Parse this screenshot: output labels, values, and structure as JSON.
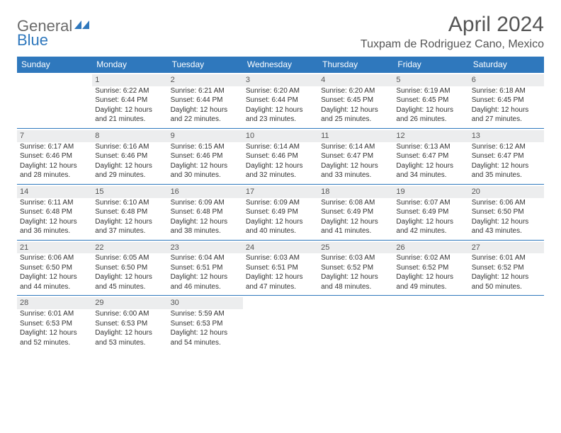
{
  "brand": {
    "part1": "General",
    "part2": "Blue"
  },
  "title": "April 2024",
  "location": "Tuxpam de Rodriguez Cano, Mexico",
  "colors": {
    "accent": "#2f78bd",
    "header_text": "#ffffff",
    "body_text": "#333333",
    "muted_text": "#555555",
    "daynum_bg": "#ecedee",
    "background": "#ffffff"
  },
  "typography": {
    "title_fontsize": 30,
    "location_fontsize": 16,
    "header_fontsize": 12,
    "cell_fontsize": 10,
    "daynum_fontsize": 11
  },
  "calendar": {
    "type": "table",
    "columns": [
      "Sunday",
      "Monday",
      "Tuesday",
      "Wednesday",
      "Thursday",
      "Friday",
      "Saturday"
    ],
    "weeks": [
      [
        null,
        {
          "n": 1,
          "sr": "6:22 AM",
          "ss": "6:44 PM",
          "dl": "12 hours and 21 minutes."
        },
        {
          "n": 2,
          "sr": "6:21 AM",
          "ss": "6:44 PM",
          "dl": "12 hours and 22 minutes."
        },
        {
          "n": 3,
          "sr": "6:20 AM",
          "ss": "6:44 PM",
          "dl": "12 hours and 23 minutes."
        },
        {
          "n": 4,
          "sr": "6:20 AM",
          "ss": "6:45 PM",
          "dl": "12 hours and 25 minutes."
        },
        {
          "n": 5,
          "sr": "6:19 AM",
          "ss": "6:45 PM",
          "dl": "12 hours and 26 minutes."
        },
        {
          "n": 6,
          "sr": "6:18 AM",
          "ss": "6:45 PM",
          "dl": "12 hours and 27 minutes."
        }
      ],
      [
        {
          "n": 7,
          "sr": "6:17 AM",
          "ss": "6:46 PM",
          "dl": "12 hours and 28 minutes."
        },
        {
          "n": 8,
          "sr": "6:16 AM",
          "ss": "6:46 PM",
          "dl": "12 hours and 29 minutes."
        },
        {
          "n": 9,
          "sr": "6:15 AM",
          "ss": "6:46 PM",
          "dl": "12 hours and 30 minutes."
        },
        {
          "n": 10,
          "sr": "6:14 AM",
          "ss": "6:46 PM",
          "dl": "12 hours and 32 minutes."
        },
        {
          "n": 11,
          "sr": "6:14 AM",
          "ss": "6:47 PM",
          "dl": "12 hours and 33 minutes."
        },
        {
          "n": 12,
          "sr": "6:13 AM",
          "ss": "6:47 PM",
          "dl": "12 hours and 34 minutes."
        },
        {
          "n": 13,
          "sr": "6:12 AM",
          "ss": "6:47 PM",
          "dl": "12 hours and 35 minutes."
        }
      ],
      [
        {
          "n": 14,
          "sr": "6:11 AM",
          "ss": "6:48 PM",
          "dl": "12 hours and 36 minutes."
        },
        {
          "n": 15,
          "sr": "6:10 AM",
          "ss": "6:48 PM",
          "dl": "12 hours and 37 minutes."
        },
        {
          "n": 16,
          "sr": "6:09 AM",
          "ss": "6:48 PM",
          "dl": "12 hours and 38 minutes."
        },
        {
          "n": 17,
          "sr": "6:09 AM",
          "ss": "6:49 PM",
          "dl": "12 hours and 40 minutes."
        },
        {
          "n": 18,
          "sr": "6:08 AM",
          "ss": "6:49 PM",
          "dl": "12 hours and 41 minutes."
        },
        {
          "n": 19,
          "sr": "6:07 AM",
          "ss": "6:49 PM",
          "dl": "12 hours and 42 minutes."
        },
        {
          "n": 20,
          "sr": "6:06 AM",
          "ss": "6:50 PM",
          "dl": "12 hours and 43 minutes."
        }
      ],
      [
        {
          "n": 21,
          "sr": "6:06 AM",
          "ss": "6:50 PM",
          "dl": "12 hours and 44 minutes."
        },
        {
          "n": 22,
          "sr": "6:05 AM",
          "ss": "6:50 PM",
          "dl": "12 hours and 45 minutes."
        },
        {
          "n": 23,
          "sr": "6:04 AM",
          "ss": "6:51 PM",
          "dl": "12 hours and 46 minutes."
        },
        {
          "n": 24,
          "sr": "6:03 AM",
          "ss": "6:51 PM",
          "dl": "12 hours and 47 minutes."
        },
        {
          "n": 25,
          "sr": "6:03 AM",
          "ss": "6:52 PM",
          "dl": "12 hours and 48 minutes."
        },
        {
          "n": 26,
          "sr": "6:02 AM",
          "ss": "6:52 PM",
          "dl": "12 hours and 49 minutes."
        },
        {
          "n": 27,
          "sr": "6:01 AM",
          "ss": "6:52 PM",
          "dl": "12 hours and 50 minutes."
        }
      ],
      [
        {
          "n": 28,
          "sr": "6:01 AM",
          "ss": "6:53 PM",
          "dl": "12 hours and 52 minutes."
        },
        {
          "n": 29,
          "sr": "6:00 AM",
          "ss": "6:53 PM",
          "dl": "12 hours and 53 minutes."
        },
        {
          "n": 30,
          "sr": "5:59 AM",
          "ss": "6:53 PM",
          "dl": "12 hours and 54 minutes."
        },
        null,
        null,
        null,
        null
      ]
    ],
    "labels": {
      "sunrise": "Sunrise:",
      "sunset": "Sunset:",
      "daylight": "Daylight:"
    }
  }
}
